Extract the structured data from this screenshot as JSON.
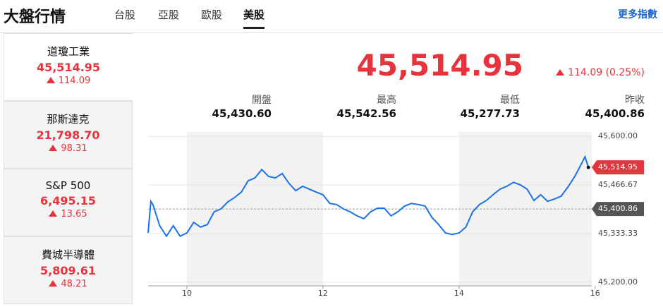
{
  "header": {
    "title": "大盤行情",
    "tabs": [
      "台股",
      "亞股",
      "歐股",
      "美股"
    ],
    "active_tab": 3,
    "more_link": "更多指數"
  },
  "indices": [
    {
      "name": "道瓊工業",
      "value": "45,514.95",
      "change": "114.09"
    },
    {
      "name": "那斯達克",
      "value": "21,798.70",
      "change": "98.31"
    },
    {
      "name": "S&P 500",
      "value": "6,495.15",
      "change": "13.65"
    },
    {
      "name": "費城半導體",
      "value": "5,809.61",
      "change": "48.21"
    }
  ],
  "quote": {
    "price": "45,514.95",
    "change": "114.09 (0.25%)",
    "stats": [
      {
        "label": "開盤",
        "value": "45,430.60"
      },
      {
        "label": "最高",
        "value": "45,542.56"
      },
      {
        "label": "最低",
        "value": "45,277.73"
      },
      {
        "label": "昨收",
        "value": "45,400.86"
      }
    ]
  },
  "chart_data": {
    "type": "line",
    "x": [
      9.43,
      9.47,
      9.5,
      9.6,
      9.7,
      9.8,
      9.9,
      10.0,
      10.1,
      10.2,
      10.3,
      10.4,
      10.5,
      10.6,
      10.7,
      10.8,
      10.9,
      11.0,
      11.1,
      11.2,
      11.3,
      11.4,
      11.5,
      11.6,
      11.7,
      11.8,
      11.9,
      12.0,
      12.1,
      12.2,
      12.3,
      12.4,
      12.5,
      12.6,
      12.7,
      12.8,
      12.9,
      13.0,
      13.1,
      13.2,
      13.3,
      13.4,
      13.5,
      13.6,
      13.7,
      13.8,
      13.9,
      14.0,
      14.1,
      14.2,
      14.3,
      14.4,
      14.5,
      14.6,
      14.7,
      14.8,
      14.9,
      15.0,
      15.1,
      15.2,
      15.3,
      15.4,
      15.5,
      15.6,
      15.7,
      15.8,
      15.85,
      15.9
    ],
    "series": [
      {
        "color": "#1a73e8",
        "values": [
          45335,
          45422,
          45413,
          45355,
          45326,
          45355,
          45326,
          45335,
          45364,
          45351,
          45358,
          45393,
          45401,
          45420,
          45432,
          45447,
          45478,
          45486,
          45509,
          45490,
          45486,
          45498,
          45471,
          45451,
          45463,
          45455,
          45447,
          45440,
          45416,
          45413,
          45401,
          45393,
          45382,
          45374,
          45393,
          45403,
          45403,
          45382,
          45393,
          45409,
          45416,
          45413,
          45409,
          45378,
          45358,
          45335,
          45331,
          45335,
          45351,
          45393,
          45413,
          45424,
          45440,
          45455,
          45463,
          45474,
          45467,
          45455,
          45424,
          45440,
          45422,
          45428,
          45436,
          45461,
          45490,
          45525,
          45544,
          45514.95
        ],
        "value_labels": [
          null,
          null,
          null,
          null,
          null,
          null,
          null,
          null,
          null,
          null,
          null,
          null,
          null,
          null,
          null,
          null,
          null,
          null,
          null,
          null,
          null,
          null,
          null,
          null,
          null,
          null,
          null,
          null,
          null,
          null,
          null,
          null,
          null,
          null,
          null,
          null,
          null,
          null,
          null,
          null,
          null,
          null,
          null,
          null,
          null,
          null,
          null,
          null,
          null,
          null,
          null,
          null,
          null,
          null,
          null,
          null,
          null,
          null,
          null,
          null,
          null,
          null,
          null,
          null,
          null,
          null,
          null,
          "45,514.95"
        ]
      }
    ],
    "xlim": [
      9.43,
      15.95
    ],
    "xticks": [
      10,
      12,
      14,
      16
    ],
    "ylim": [
      45190,
      45612
    ],
    "yticks": [
      {
        "value": 45600,
        "label": "45,600.00"
      },
      {
        "value": 45466.67,
        "label": "45,466.67"
      },
      {
        "value": 45333.33,
        "label": "45,333.33"
      },
      {
        "value": 45200,
        "label": "45,200.00"
      }
    ],
    "reference_line": {
      "value": 45400.86,
      "label": "45,400.86"
    },
    "grid": true
  }
}
